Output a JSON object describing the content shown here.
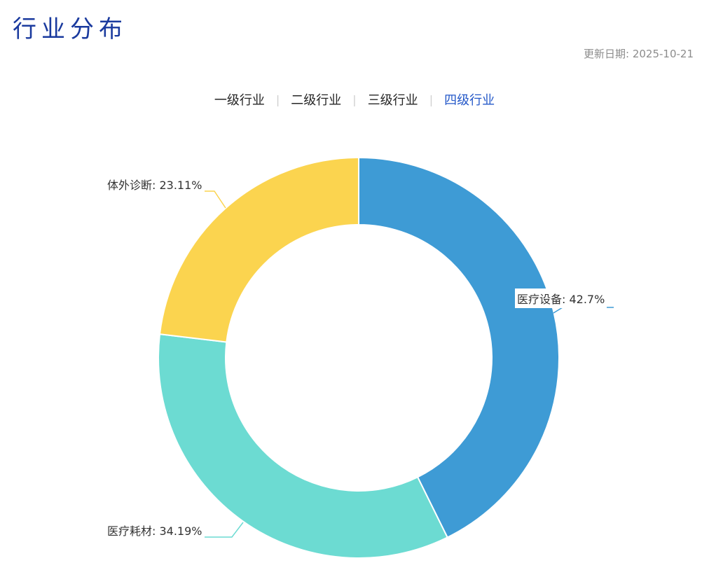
{
  "page": {
    "title": "行业分布",
    "update_date": "更新日期: 2025-10-21"
  },
  "tab_separator": "|",
  "tabs": [
    {
      "label": "一级行业",
      "active": false
    },
    {
      "label": "二级行业",
      "active": false
    },
    {
      "label": "三级行业",
      "active": false
    },
    {
      "label": "四级行业",
      "active": true
    }
  ],
  "chart_data": {
    "type": "pie",
    "subtype": "donut",
    "title": "",
    "legend_position": "none",
    "inner_radius_ratio": 0.66,
    "start_angle_deg": 0,
    "direction": "clockwise",
    "unit": "%",
    "slices": [
      {
        "key": "medical-devices",
        "name": "医疗设备",
        "value": 42.7,
        "label": "医疗设备: 42.7%",
        "color": "#3E9BD5"
      },
      {
        "key": "medical-consumables",
        "name": "医疗耗材",
        "value": 34.19,
        "label": "医疗耗材: 34.19%",
        "color": "#6CDBD2"
      },
      {
        "key": "ivd",
        "name": "体外诊断",
        "value": 23.11,
        "label": "体外诊断: 23.11%",
        "color": "#FBD44F"
      }
    ]
  }
}
